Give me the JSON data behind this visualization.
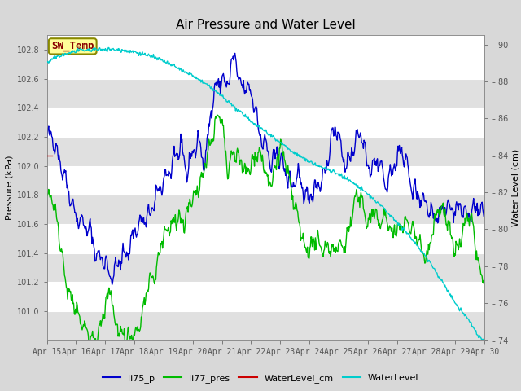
{
  "title": "Air Pressure and Water Level",
  "ylabel_left": "Pressure (kPa)",
  "ylabel_right": "Water Level (cm)",
  "ylim_left": [
    100.8,
    102.9
  ],
  "ylim_right": [
    74,
    90.5
  ],
  "yticks_left": [
    101.0,
    101.2,
    101.4,
    101.6,
    101.8,
    102.0,
    102.2,
    102.4,
    102.6,
    102.8
  ],
  "yticks_right": [
    74,
    76,
    78,
    80,
    82,
    84,
    86,
    88,
    90
  ],
  "x_labels": [
    "Apr 15",
    "Apr 16",
    "Apr 17",
    "Apr 18",
    "Apr 19",
    "Apr 20",
    "Apr 21",
    "Apr 22",
    "Apr 23",
    "Apr 24",
    "Apr 25",
    "Apr 26",
    "Apr 27",
    "Apr 28",
    "Apr 29",
    "Apr 30"
  ],
  "color_li75": "#0000cc",
  "color_li77": "#00bb00",
  "color_wlcm": "#cc0000",
  "color_wl": "#00cccc",
  "bg_color": "#d8d8d8",
  "plot_bg_light": "#e8e8e8",
  "plot_bg_dark": "#d0d0d0",
  "annotation_text": "SW_Temp",
  "annotation_color": "#880000",
  "annotation_bg": "#ffff99",
  "annotation_border": "#cccc00",
  "legend_labels": [
    "li75_p",
    "li77_pres",
    "WaterLevel_cm",
    "WaterLevel"
  ],
  "title_fontsize": 12,
  "label_fontsize": 9,
  "tick_fontsize": 8
}
